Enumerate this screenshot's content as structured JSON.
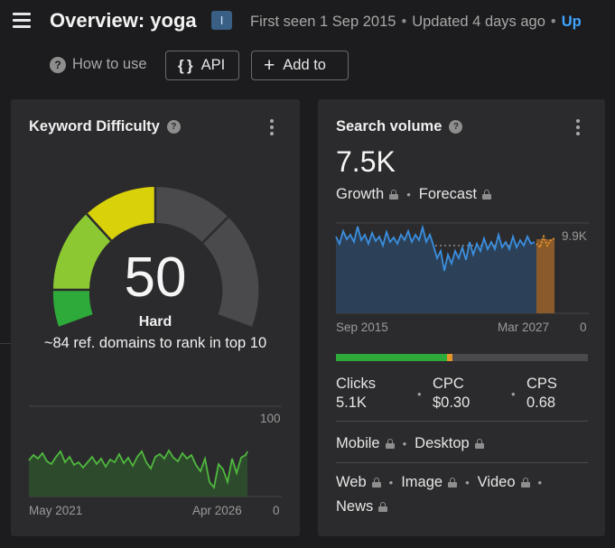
{
  "header": {
    "title": "Overview: yoga",
    "badge": "I",
    "first_seen": "First seen 1 Sep 2015",
    "updated": "Updated 4 days ago",
    "update_link": "Up",
    "how_to_use": "How to use",
    "api_label": "API",
    "add_to_label": "Add to"
  },
  "kd_card": {
    "title": "Keyword Difficulty",
    "value": "50",
    "level": "Hard",
    "description": "~84 ref. domains to rank in top 10",
    "trend_max": "100",
    "trend_min": "0",
    "trend_start": "May 2021",
    "trend_end": "Apr 2026",
    "colors": {
      "green": "#2eaa3a",
      "lime": "#8bc832",
      "yellow": "#d9d10a",
      "gray": "#4a4a4c",
      "line": "#4fb83e"
    }
  },
  "sv_card": {
    "title": "Search volume",
    "value": "7.5K",
    "growth": "Growth",
    "forecast": "Forecast",
    "chart_max": "9.9K",
    "chart_min": "0",
    "chart_start": "Sep 2015",
    "chart_end": "Mar 2027",
    "clicks_label": "Clicks",
    "clicks_value": "5.1K",
    "cpc_label": "CPC",
    "cpc_value": "$0.30",
    "cps_label": "CPS",
    "cps_value": "0.68",
    "clicks_share": {
      "organic": 0.44,
      "paid": 0.02
    },
    "mobile": "Mobile",
    "desktop": "Desktop",
    "web": "Web",
    "image": "Image",
    "video": "Video",
    "news": "News",
    "colors": {
      "line": "#3b8fe0",
      "fill": "#2c4157",
      "forecast": "#e8962a",
      "organic": "#2eaa3a",
      "paid": "#e8962a"
    }
  }
}
